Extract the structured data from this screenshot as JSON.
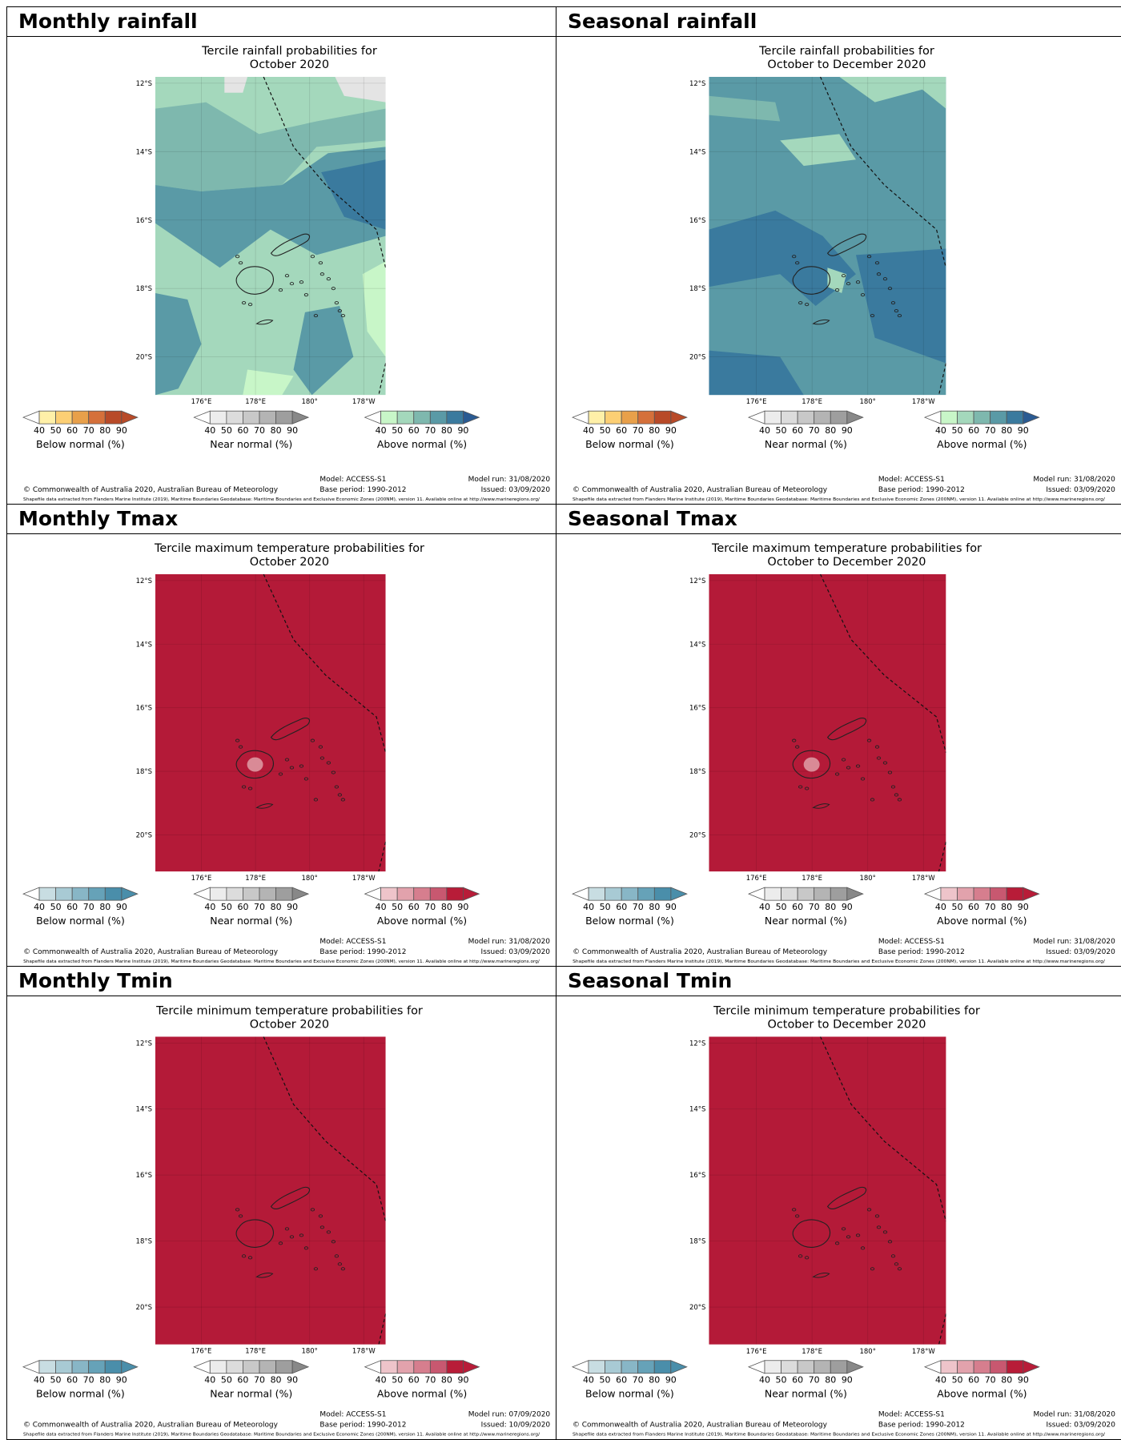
{
  "document": {
    "headers": [
      "Monthly rainfall",
      "Seasonal rainfall",
      "Monthly Tmax",
      "Seasonal Tmax",
      "Monthly Tmin",
      "Seasonal Tmin"
    ]
  },
  "legend_ticks": [
    "40",
    "50",
    "60",
    "70",
    "80",
    "90"
  ],
  "axis_labels": {
    "lat": [
      "12°S",
      "14°S",
      "16°S",
      "18°S",
      "20°S"
    ],
    "lon": [
      "176°E",
      "178°E",
      "180°",
      "178°W"
    ]
  },
  "footer": {
    "copyright": "© Commonwealth of Australia 2020, Australian Bureau of Meteorology",
    "shapefile": "Shapefile data extracted from Flanders Marine Institute (2019), Maritime Boundaries Geodatabase: Maritime Boundaries and Exclusive Economic Zones (200NM), version 11. Available online at http://www.marineregions.org/",
    "model": "Model: ACCESS-S1",
    "base": "Base period: 1990-2012"
  },
  "colors": {
    "dry": [
      "#fff0a8",
      "#fccf74",
      "#e8a04a",
      "#d5703a",
      "#b84a28"
    ],
    "near": [
      "#ececec",
      "#dcdcdc",
      "#c8c8c8",
      "#b4b4b4",
      "#9e9e9e"
    ],
    "wet": [
      "#c8f6c8",
      "#a4d8bc",
      "#7eb8ae",
      "#5a9aa6",
      "#3a7a9e",
      "#2a5a92"
    ],
    "cold": [
      "#c8dde2",
      "#a8cad4",
      "#88b6c6",
      "#66a2b8",
      "#4a8eaa"
    ],
    "warm": [
      "#eec4ca",
      "#e2a2ac",
      "#d67e8e",
      "#c85870",
      "#b81c38"
    ],
    "map_red": "#b41a38",
    "land_light": "#d98a96"
  },
  "panels": [
    {
      "id": "rain-month",
      "title_line1": "Tercile rainfall probabilities for",
      "title_line2": "October 2020",
      "type": "rain",
      "legend_below": "Below normal (%)",
      "legend_near": "Near normal (%)",
      "legend_above": "Above normal (%)",
      "legend_palette_below": "dry",
      "legend_palette_above": "wet",
      "model_run": "Model run: 31/08/2020",
      "issued": "Issued: 03/09/2020"
    },
    {
      "id": "rain-season",
      "title_line1": "Tercile rainfall probabilities for",
      "title_line2": "October to December 2020",
      "type": "rain_seasonal",
      "legend_below": "Below normal (%)",
      "legend_near": "Near normal (%)",
      "legend_above": "Above normal (%)",
      "legend_palette_below": "dry",
      "legend_palette_above": "wet",
      "model_run": "Model run: 31/08/2020",
      "issued": "Issued: 03/09/2020"
    },
    {
      "id": "tmax-month",
      "title_line1": "Tercile maximum temperature probabilities for",
      "title_line2": "October 2020",
      "type": "temp",
      "spot": true,
      "legend_below": "Below normal (%)",
      "legend_near": "Near normal (%)",
      "legend_above": "Above normal (%)",
      "legend_palette_below": "cold",
      "legend_palette_above": "warm",
      "model_run": "Model run: 31/08/2020",
      "issued": "Issued: 03/09/2020"
    },
    {
      "id": "tmax-season",
      "title_line1": "Tercile maximum temperature probabilities for",
      "title_line2": "October to December 2020",
      "type": "temp",
      "spot": true,
      "legend_below": "Below normal (%)",
      "legend_near": "Near normal (%)",
      "legend_above": "Above normal (%)",
      "legend_palette_below": "cold",
      "legend_palette_above": "warm",
      "model_run": "Model run: 31/08/2020",
      "issued": "Issued: 03/09/2020"
    },
    {
      "id": "tmin-month",
      "title_line1": "Tercile minimum temperature probabilities for",
      "title_line2": "October 2020",
      "type": "temp",
      "spot": false,
      "legend_below": "Below normal (%)",
      "legend_near": "Near normal (%)",
      "legend_above": "Above normal (%)",
      "legend_palette_below": "cold",
      "legend_palette_above": "warm",
      "model_run": "Model run: 07/09/2020",
      "issued": "Issued: 10/09/2020"
    },
    {
      "id": "tmin-season",
      "title_line1": "Tercile minimum temperature probabilities for",
      "title_line2": "October to December 2020",
      "type": "temp",
      "spot": false,
      "legend_below": "Below normal (%)",
      "legend_near": "Near normal (%)",
      "legend_above": "Above normal (%)",
      "legend_palette_below": "cold",
      "legend_palette_above": "warm",
      "model_run": "Model run: 31/08/2020",
      "issued": "Issued: 03/09/2020"
    }
  ]
}
